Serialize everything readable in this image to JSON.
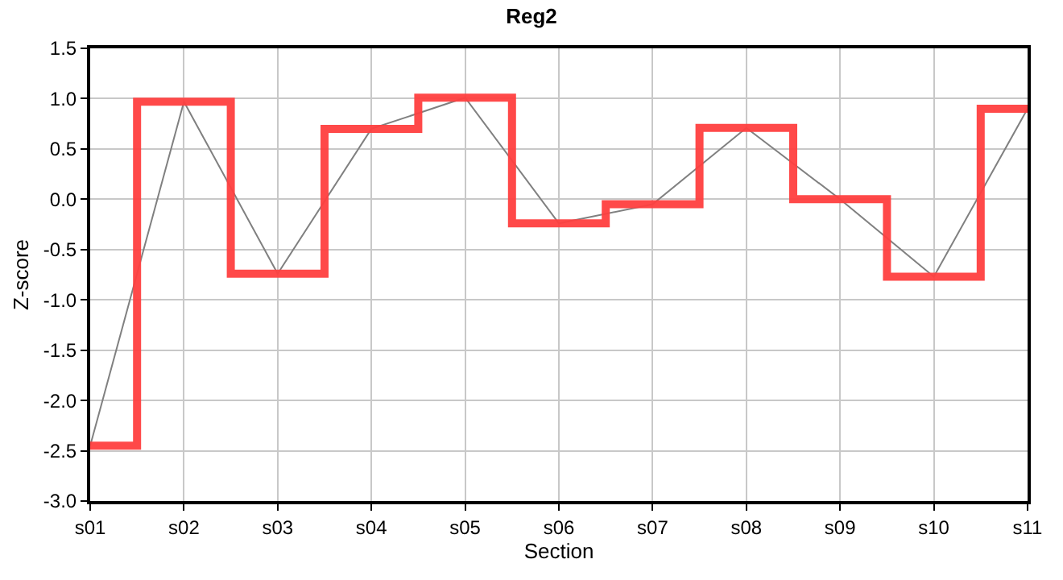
{
  "chart_data": {
    "type": "line",
    "title": "Reg2",
    "xlabel": "Section",
    "ylabel": "Z-score",
    "categories": [
      "s01",
      "s02",
      "s03",
      "s04",
      "s05",
      "s06",
      "s07",
      "s08",
      "s09",
      "s10",
      "s11"
    ],
    "series": [
      {
        "type": "line",
        "color": "#808080",
        "values": [
          -2.45,
          0.97,
          -0.74,
          0.7,
          1.01,
          -0.24,
          -0.05,
          0.71,
          0.0,
          -0.77,
          0.9
        ]
      },
      {
        "type": "step",
        "color": "#ff4040",
        "values": [
          -2.45,
          0.97,
          -0.74,
          0.7,
          1.01,
          -0.24,
          -0.05,
          0.71,
          0.0,
          -0.77,
          0.9
        ]
      }
    ],
    "ylim": [
      -3,
      1.5
    ],
    "yticks": [
      {
        "value": -3,
        "label": "-3.0"
      },
      {
        "value": -2.5,
        "label": "-2.5"
      },
      {
        "value": -2,
        "label": "-2.0"
      },
      {
        "value": -1.5,
        "label": "-1.5"
      },
      {
        "value": -1,
        "label": "-1.0"
      },
      {
        "value": -0.5,
        "label": "-0.5"
      },
      {
        "value": 0,
        "label": "0.0"
      },
      {
        "value": 0.5,
        "label": "0.5"
      },
      {
        "value": 1,
        "label": "1.0"
      },
      {
        "value": 1.5,
        "label": "1.5"
      }
    ],
    "grid": true,
    "marker": "none",
    "line_style": "solid"
  }
}
